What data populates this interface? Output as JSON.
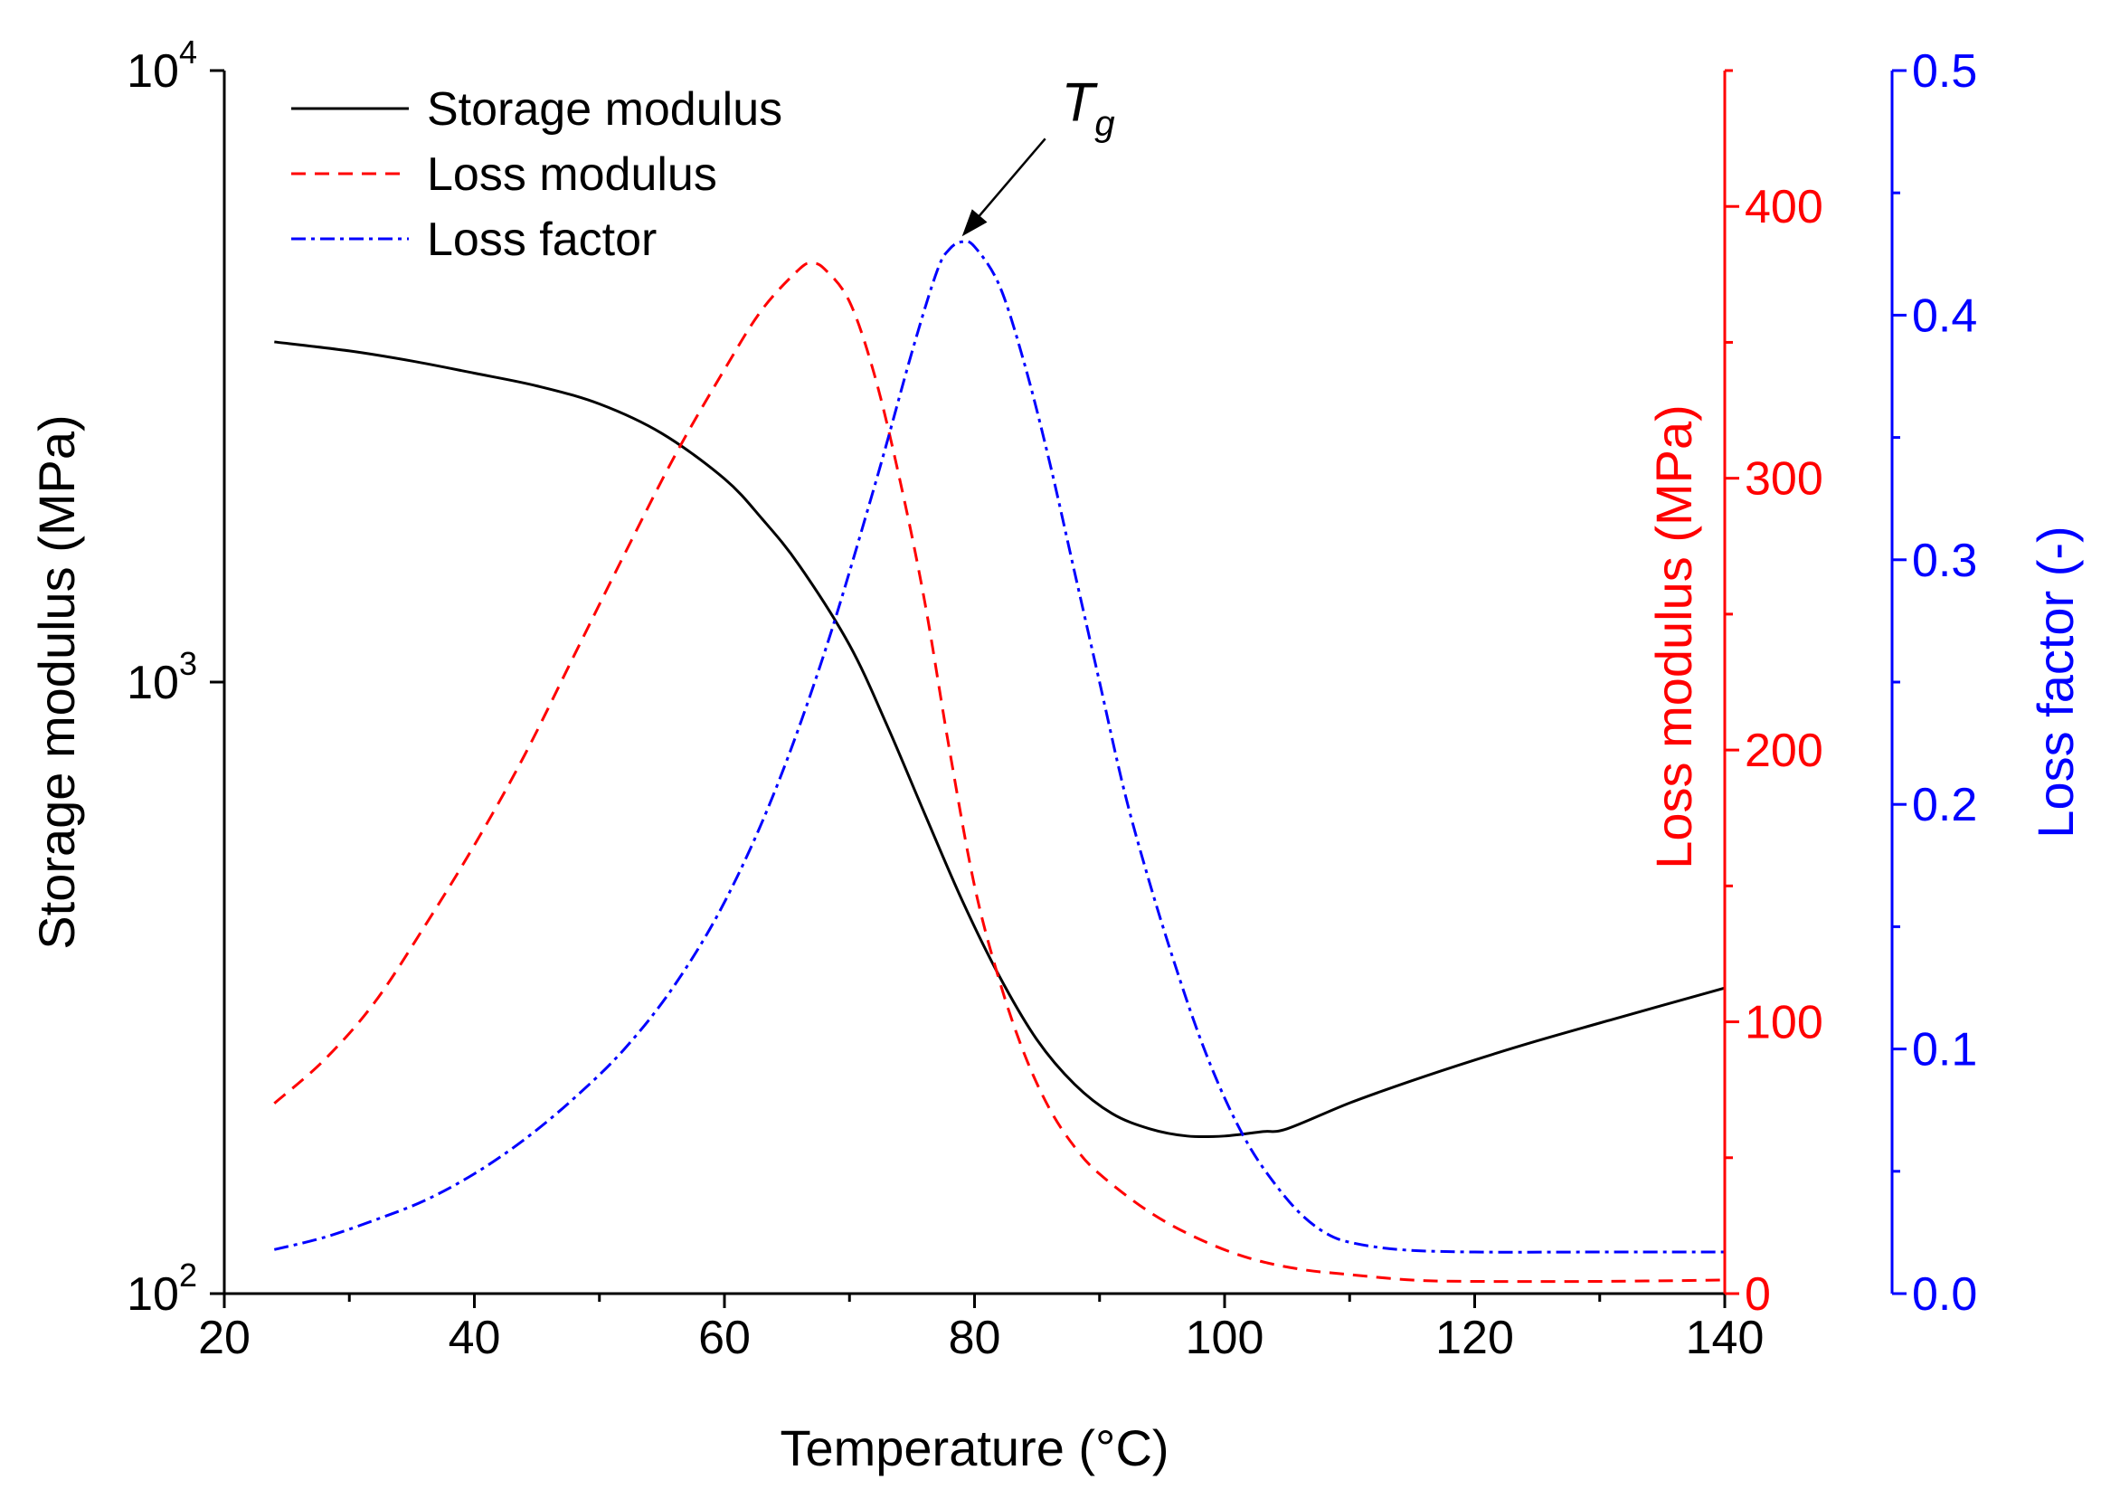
{
  "chart_data": {
    "type": "line",
    "xlabel": "Temperature (°C)",
    "xlim": [
      20,
      140
    ],
    "x_ticks": [
      20,
      40,
      60,
      80,
      100,
      120,
      140
    ],
    "x_ticklabels": [
      "20",
      "40",
      "60",
      "80",
      "100",
      "120",
      "140"
    ],
    "grid": false,
    "legend_position": "top-left",
    "axes": {
      "left": {
        "label": "Storage modulus (MPa)",
        "scale": "log",
        "lim": [
          100,
          10000
        ],
        "ticks": [
          100,
          1000,
          10000
        ],
        "ticklabels": [
          {
            "base": "10",
            "exp": "2"
          },
          {
            "base": "10",
            "exp": "3"
          },
          {
            "base": "10",
            "exp": "4"
          }
        ],
        "color": "#000000"
      },
      "right1": {
        "label": "Loss modulus (MPa)",
        "scale": "linear",
        "lim": [
          0,
          450
        ],
        "ticks": [
          0,
          100,
          200,
          300,
          400
        ],
        "ticklabels": [
          "0",
          "100",
          "200",
          "300",
          "400"
        ],
        "color": "#ff0000"
      },
      "right2": {
        "label": "Loss factor (-)",
        "scale": "linear",
        "lim": [
          0,
          0.5
        ],
        "ticks": [
          0,
          0.1,
          0.2,
          0.3,
          0.4,
          0.5
        ],
        "ticklabels": [
          "0.0",
          "0.1",
          "0.2",
          "0.3",
          "0.4",
          "0.5"
        ],
        "color": "#0000ff"
      }
    },
    "series": [
      {
        "name": "Storage modulus",
        "axis": "left",
        "color": "#000000",
        "style": "solid",
        "x": [
          24,
          30,
          35,
          40,
          45,
          50,
          55,
          60,
          63,
          66,
          70,
          73,
          76,
          79,
          82,
          85,
          88,
          91,
          94,
          97,
          100,
          103,
          105,
          110,
          115,
          120,
          125,
          130,
          135,
          140
        ],
        "y": [
          3600,
          3480,
          3350,
          3200,
          3050,
          2850,
          2550,
          2150,
          1850,
          1550,
          1150,
          850,
          610,
          440,
          330,
          260,
          220,
          197,
          186,
          181,
          181,
          184,
          186,
          205,
          223,
          241,
          259,
          277,
          296,
          316
        ]
      },
      {
        "name": "Loss modulus",
        "axis": "right1",
        "color": "#ff0000",
        "style": "dashed",
        "x": [
          24,
          28,
          32,
          36,
          40,
          44,
          48,
          52,
          56,
          60,
          63,
          66,
          67,
          68,
          70,
          72,
          74,
          76,
          78,
          80,
          82,
          84,
          86,
          88,
          90,
          94,
          98,
          102,
          106,
          110,
          115,
          120,
          130,
          140
        ],
        "y": [
          70,
          86,
          107,
          135,
          165,
          198,
          235,
          272,
          308,
          340,
          362,
          377,
          379,
          377,
          365,
          338,
          300,
          255,
          200,
          150,
          115,
          88,
          68,
          54,
          44,
          30,
          20,
          13,
          9,
          7,
          5,
          4.5,
          4.5,
          5
        ]
      },
      {
        "name": "Loss factor",
        "axis": "right2",
        "color": "#0000ff",
        "style": "dashdot",
        "x": [
          24,
          28,
          32,
          36,
          40,
          44,
          48,
          52,
          56,
          60,
          64,
          68,
          72,
          75,
          77,
          78,
          79,
          80,
          82,
          84,
          86,
          88,
          90,
          92,
          94,
          96,
          98,
          100,
          102,
          104,
          106,
          108,
          110,
          114,
          120,
          130,
          140
        ],
        "y": [
          0.018,
          0.023,
          0.03,
          0.038,
          0.049,
          0.063,
          0.08,
          0.1,
          0.126,
          0.16,
          0.205,
          0.262,
          0.33,
          0.385,
          0.418,
          0.427,
          0.43,
          0.428,
          0.412,
          0.38,
          0.34,
          0.295,
          0.25,
          0.205,
          0.168,
          0.135,
          0.105,
          0.08,
          0.06,
          0.045,
          0.033,
          0.025,
          0.021,
          0.018,
          0.017,
          0.017,
          0.017
        ]
      }
    ],
    "annotations": [
      {
        "base": "T",
        "sub": "g",
        "target_x": 79,
        "target_series": "Loss factor"
      }
    ]
  }
}
